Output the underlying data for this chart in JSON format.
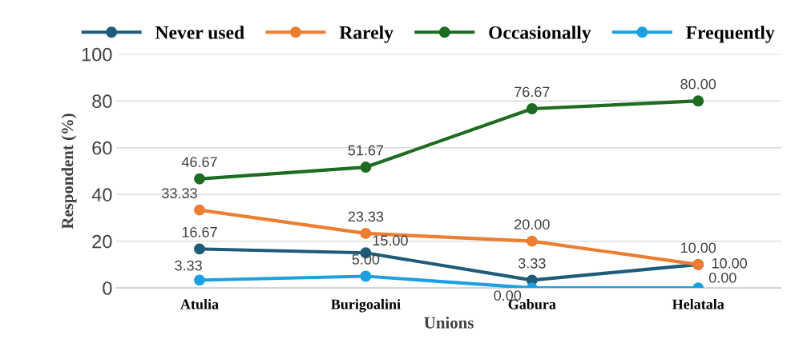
{
  "chart_data": {
    "type": "line",
    "xlabel": "Unions",
    "ylabel": "Respondent (%)",
    "categories": [
      "Atulia",
      "Burigoalini",
      "Gabura",
      "Helatala"
    ],
    "series": [
      {
        "name": "Never used",
        "color": "#1f5c7a",
        "values": [
          16.67,
          15.0,
          3.33,
          10.0
        ],
        "value_labels": [
          "16.67",
          "15.00",
          "3.33",
          "10.00"
        ]
      },
      {
        "name": "Rarely",
        "color": "#ed7d31",
        "values": [
          33.33,
          23.33,
          20.0,
          10.0
        ],
        "value_labels": [
          "33.33",
          "23.33",
          "20.00",
          "10.00"
        ]
      },
      {
        "name": "Occasionally",
        "color": "#1e6b22",
        "values": [
          46.67,
          51.67,
          76.67,
          80.0
        ],
        "value_labels": [
          "46.67",
          "51.67",
          "76.67",
          "80.00"
        ]
      },
      {
        "name": "Frequently",
        "color": "#1ba1e2",
        "values": [
          3.33,
          5.0,
          0.0,
          0.0
        ],
        "value_labels": [
          "3.33",
          "5.00",
          "0.00",
          "0.00"
        ]
      }
    ],
    "ylim": [
      0,
      100
    ],
    "yticks": [
      0,
      20,
      40,
      60,
      80,
      100
    ],
    "grid": "y",
    "legend": "top",
    "marker": "circle",
    "line_style": "solid"
  }
}
